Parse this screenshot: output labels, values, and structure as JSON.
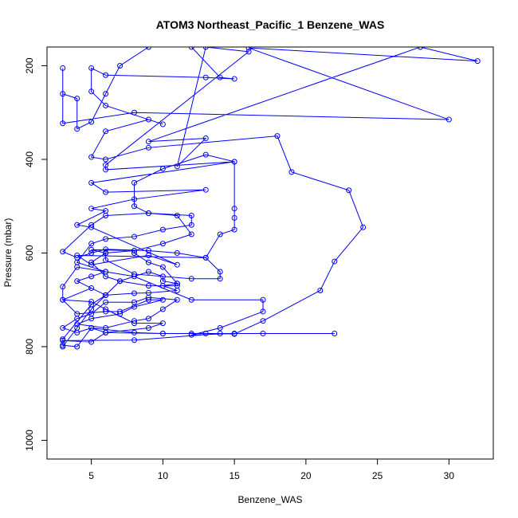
{
  "chart_data": {
    "type": "line",
    "title": "ATOM3 Northeast_Pacific_1 Benzene_WAS",
    "xlabel": "Benzene_WAS",
    "ylabel": "Pressure (mbar)",
    "xlim": [
      1.9,
      33.1
    ],
    "ylim": [
      1040,
      160
    ],
    "y_axis_inverted": true,
    "x_ticks": [
      5,
      10,
      15,
      20,
      25,
      30
    ],
    "y_ticks": [
      200,
      400,
      600,
      800,
      1000
    ],
    "grid": false,
    "legend": "none",
    "series_color": "#0000ff",
    "series": [
      {
        "values": [
          [
            3,
            800
          ],
          [
            4,
            760
          ],
          [
            5,
            720
          ],
          [
            6,
            690
          ],
          [
            7,
            660
          ],
          [
            9,
            640
          ],
          [
            10,
            650
          ],
          [
            10,
            660
          ],
          [
            11,
            665
          ],
          [
            11,
            670
          ],
          [
            9,
            670
          ],
          [
            7,
            660
          ],
          [
            6,
            650
          ],
          [
            5,
            620
          ],
          [
            6,
            600
          ],
          [
            8,
            595
          ],
          [
            10,
            580
          ],
          [
            12,
            560
          ],
          [
            11,
            520
          ],
          [
            9,
            515
          ],
          [
            8,
            500
          ],
          [
            8,
            450
          ],
          [
            10,
            420
          ],
          [
            13,
            390
          ],
          [
            15,
            405
          ],
          [
            15,
            505
          ],
          [
            15,
            525
          ],
          [
            15,
            550
          ],
          [
            14,
            560
          ],
          [
            13,
            610
          ],
          [
            11,
            600
          ],
          [
            9,
            595
          ],
          [
            6,
            592
          ],
          [
            5,
            600
          ],
          [
            4,
            610
          ],
          [
            3,
            597
          ],
          [
            5,
            540
          ],
          [
            6,
            520
          ],
          [
            9,
            515
          ],
          [
            12,
            520
          ],
          [
            12,
            540
          ],
          [
            10,
            550
          ],
          [
            8,
            565
          ],
          [
            6,
            570
          ],
          [
            5,
            580
          ],
          [
            4,
            620
          ],
          [
            6,
            640
          ],
          [
            8,
            650
          ],
          [
            12,
            700
          ],
          [
            17,
            700
          ],
          [
            17,
            725
          ],
          [
            14,
            760
          ],
          [
            12,
            775
          ],
          [
            15,
            772
          ],
          [
            22,
            772
          ],
          [
            10,
            772
          ],
          [
            6,
            770
          ],
          [
            5,
            760
          ],
          [
            4,
            800
          ],
          [
            3,
            797
          ],
          [
            3,
            784
          ],
          [
            5,
            710
          ],
          [
            6,
            690
          ],
          [
            4,
            660
          ],
          [
            5,
            650
          ],
          [
            6,
            640
          ],
          [
            4,
            630
          ],
          [
            3,
            672
          ],
          [
            3,
            700
          ],
          [
            5,
            704
          ],
          [
            6,
            720
          ],
          [
            8,
            750
          ],
          [
            10,
            750
          ],
          [
            9,
            760
          ],
          [
            6,
            770
          ],
          [
            5,
            790
          ],
          [
            3,
            787
          ],
          [
            8,
            786
          ],
          [
            14,
            772
          ],
          [
            15,
            773
          ],
          [
            17,
            745
          ],
          [
            21,
            680
          ],
          [
            22,
            618
          ],
          [
            24,
            545
          ],
          [
            23,
            466
          ],
          [
            19,
            427
          ],
          [
            18,
            350
          ],
          [
            9,
            375
          ],
          [
            6,
            400
          ],
          [
            5,
            395
          ],
          [
            6,
            340
          ],
          [
            9,
            315
          ],
          [
            10,
            325
          ],
          [
            6,
            285
          ],
          [
            5,
            255
          ],
          [
            5,
            205
          ],
          [
            6,
            220
          ],
          [
            13,
            225
          ],
          [
            15,
            228
          ],
          [
            14,
            225
          ],
          [
            12,
            160
          ],
          [
            9,
            160
          ],
          [
            7,
            200
          ],
          [
            6,
            260
          ],
          [
            5,
            320
          ],
          [
            4,
            335
          ],
          [
            4,
            270
          ],
          [
            3,
            260
          ],
          [
            3,
            205
          ],
          [
            3,
            323
          ],
          [
            8,
            300
          ],
          [
            30,
            315
          ],
          [
            16,
            162
          ],
          [
            32,
            190
          ],
          [
            28,
            160
          ],
          [
            9,
            362
          ],
          [
            13,
            355
          ],
          [
            11,
            415
          ],
          [
            13,
            160
          ],
          [
            16,
            170
          ],
          [
            6,
            412
          ],
          [
            6,
            422
          ],
          [
            15,
            405
          ],
          [
            5,
            450
          ],
          [
            6,
            470
          ],
          [
            13,
            465
          ],
          [
            8,
            485
          ],
          [
            5,
            505
          ],
          [
            6,
            510
          ],
          [
            4,
            540
          ],
          [
            5,
            545
          ],
          [
            11,
            625
          ],
          [
            9,
            605
          ],
          [
            5,
            625
          ],
          [
            4,
            605
          ],
          [
            13,
            610
          ],
          [
            14,
            640
          ],
          [
            14,
            655
          ],
          [
            12,
            655
          ],
          [
            8,
            645
          ],
          [
            6,
            615
          ],
          [
            6,
            600
          ],
          [
            5,
            593
          ],
          [
            8,
            595
          ],
          [
            8,
            600
          ],
          [
            9,
            620
          ],
          [
            10,
            630
          ],
          [
            11,
            665
          ],
          [
            10,
            670
          ],
          [
            11,
            680
          ],
          [
            9,
            685
          ],
          [
            8,
            686
          ],
          [
            6,
            690
          ],
          [
            5,
            675
          ],
          [
            3,
            700
          ],
          [
            4,
            730
          ],
          [
            6,
            725
          ],
          [
            7,
            725
          ],
          [
            9,
            700
          ],
          [
            10,
            700
          ],
          [
            8,
            715
          ],
          [
            7,
            730
          ],
          [
            5,
            740
          ],
          [
            4,
            752
          ],
          [
            6,
            760
          ],
          [
            8,
            745
          ],
          [
            9,
            740
          ],
          [
            10,
            720
          ],
          [
            11,
            700
          ],
          [
            9,
            695
          ],
          [
            8,
            705
          ],
          [
            6,
            705
          ],
          [
            5,
            730
          ],
          [
            4,
            740
          ],
          [
            3,
            760
          ],
          [
            4,
            770
          ],
          [
            5,
            760
          ],
          [
            8,
            770
          ],
          [
            10,
            772
          ],
          [
            12,
            772
          ],
          [
            13,
            772
          ],
          [
            17,
            772
          ]
        ]
      }
    ]
  }
}
